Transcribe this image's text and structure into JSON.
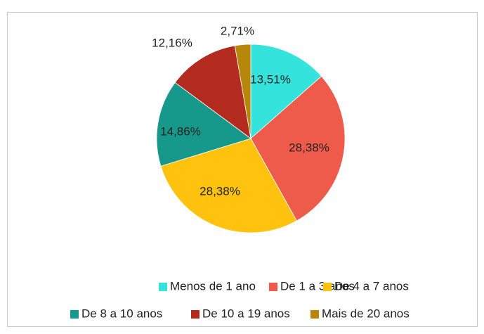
{
  "chart_data": {
    "type": "pie",
    "categories": [
      "Menos de 1 ano",
      "De 1 a 3 anos",
      "De 4 a 7 anos",
      "De 8 a 10 anos",
      "De 10 a 19 anos",
      "Mais de 20 anos"
    ],
    "values": [
      13.51,
      28.38,
      28.38,
      14.86,
      12.16,
      2.71
    ],
    "value_labels": [
      "13,51%",
      "28,38%",
      "28,38%",
      "14,86%",
      "12,16%",
      "2,71%"
    ],
    "colors": [
      "#33e3dc",
      "#ef5b4b",
      "#ffc20e",
      "#16998a",
      "#b32a1e",
      "#b8860b"
    ],
    "legend": "bottom"
  }
}
